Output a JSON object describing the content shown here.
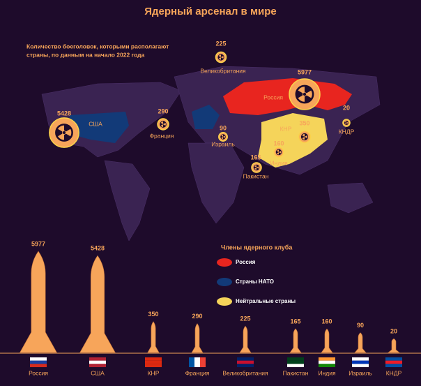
{
  "chart_data": {
    "type": "bar",
    "title": "Ядерный арсенал в мире",
    "subtitle": [
      "Количество боеголовок, которыми располагают",
      "страны, по данным на начало 2022 года"
    ],
    "categories": [
      "Россия",
      "США",
      "КНР",
      "Франция",
      "Великобритания",
      "Пакистан",
      "Индия",
      "Израиль",
      "КНДР"
    ],
    "values": [
      5977,
      5428,
      350,
      290,
      225,
      165,
      160,
      90,
      20
    ],
    "color": "#f7a55a",
    "legend_title": "Члены ядерного клуба",
    "legend": [
      {
        "name": "Россия",
        "color": "#e8251f"
      },
      {
        "name": "Страны НАТО",
        "color": "#123a78"
      },
      {
        "name": "Нейтральные страны",
        "color": "#f5d45a"
      }
    ]
  }
}
